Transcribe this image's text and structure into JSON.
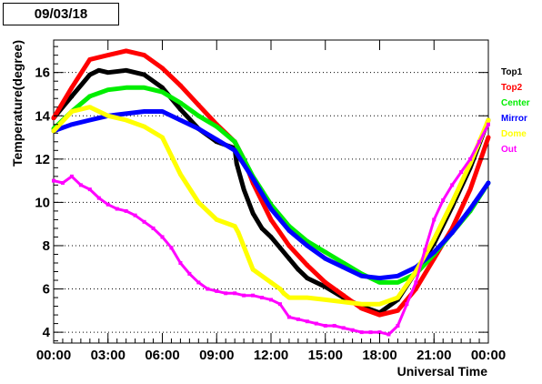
{
  "title": "09/03/18",
  "chart_data": {
    "type": "scatter",
    "xlabel": "Universal Time",
    "ylabel": "Temperature(degree)",
    "xlim": [
      0,
      24
    ],
    "ylim": [
      3.5,
      17.5
    ],
    "x_ticks": [
      {
        "value": 0,
        "label": "00:00"
      },
      {
        "value": 3,
        "label": "03:00"
      },
      {
        "value": 6,
        "label": "06:00"
      },
      {
        "value": 9,
        "label": "09:00"
      },
      {
        "value": 12,
        "label": "12:00"
      },
      {
        "value": 15,
        "label": "15:00"
      },
      {
        "value": 18,
        "label": "18:00"
      },
      {
        "value": 21,
        "label": "21:00"
      },
      {
        "value": 24,
        "label": "00:00"
      }
    ],
    "y_ticks": [
      4,
      6,
      8,
      10,
      12,
      14,
      16
    ],
    "grid": "horizontal dotted",
    "legend_position": "right",
    "series": [
      {
        "name": "Top1",
        "color": "#000000",
        "x": [
          0,
          1,
          2,
          2.5,
          3,
          4,
          5,
          6,
          7,
          8,
          9,
          10,
          10.1,
          10.5,
          11,
          11.5,
          12,
          12.5,
          13,
          13.5,
          14,
          15,
          16,
          17,
          18,
          19,
          20,
          21,
          22,
          23,
          24
        ],
        "y": [
          13.9,
          14.9,
          15.9,
          16.1,
          16.0,
          16.1,
          15.9,
          15.3,
          14.3,
          13.4,
          12.8,
          12.5,
          11.8,
          10.6,
          9.5,
          8.8,
          8.4,
          7.9,
          7.4,
          6.9,
          6.5,
          6.1,
          5.6,
          5.2,
          4.9,
          5.5,
          6.8,
          8.1,
          9.8,
          11.6,
          13.8
        ]
      },
      {
        "name": "Top2",
        "color": "#ff0000",
        "x": [
          0,
          1,
          2,
          3,
          4,
          5,
          6,
          7,
          8,
          9,
          10,
          10.5,
          11,
          12,
          13,
          14,
          15,
          16,
          17,
          18,
          19,
          20,
          21,
          22,
          23,
          24
        ],
        "y": [
          13.9,
          15.3,
          16.6,
          16.8,
          17.0,
          16.8,
          16.2,
          15.4,
          14.5,
          13.6,
          12.8,
          12.0,
          10.9,
          9.2,
          8.0,
          7.1,
          6.3,
          5.7,
          5.1,
          4.8,
          5.0,
          6.0,
          7.4,
          8.8,
          10.6,
          13.0
        ]
      },
      {
        "name": "Center",
        "color": "#00ee00",
        "x": [
          0,
          1,
          2,
          3,
          4,
          5,
          6,
          7,
          8,
          9,
          10,
          11,
          12,
          13,
          14,
          15,
          16,
          17,
          18,
          19,
          20,
          21,
          22,
          23,
          24
        ],
        "y": [
          13.4,
          14.2,
          14.9,
          15.2,
          15.3,
          15.3,
          15.1,
          14.6,
          14.0,
          13.5,
          12.8,
          11.2,
          9.9,
          8.9,
          8.2,
          7.7,
          7.2,
          6.7,
          6.3,
          6.3,
          6.7,
          7.6,
          8.6,
          9.6,
          10.9
        ]
      },
      {
        "name": "Mirror",
        "color": "#0000ff",
        "x": [
          0,
          1,
          2,
          3,
          4,
          5,
          6,
          7,
          8,
          9,
          10,
          11,
          12,
          13,
          14,
          15,
          16,
          17,
          18,
          19,
          20,
          21,
          22,
          23,
          24
        ],
        "y": [
          13.3,
          13.6,
          13.8,
          14.0,
          14.1,
          14.2,
          14.2,
          13.8,
          13.4,
          12.9,
          12.4,
          11.1,
          9.7,
          8.7,
          8.0,
          7.4,
          7.0,
          6.6,
          6.5,
          6.6,
          7.0,
          7.7,
          8.6,
          9.7,
          10.9
        ]
      },
      {
        "name": "Dome",
        "color": "#ffff00",
        "x": [
          0,
          1,
          2,
          3,
          4,
          5,
          6,
          7,
          8,
          9,
          10,
          10.2,
          11,
          12,
          12.5,
          12.7,
          13,
          14,
          15,
          16,
          17,
          18,
          19,
          20,
          21,
          22,
          23,
          24
        ],
        "y": [
          13.3,
          14.2,
          14.4,
          14.0,
          13.8,
          13.5,
          13.0,
          11.3,
          10.0,
          9.2,
          8.9,
          8.6,
          6.9,
          6.3,
          6.0,
          5.8,
          5.6,
          5.6,
          5.5,
          5.4,
          5.3,
          5.3,
          5.6,
          6.8,
          8.3,
          10.0,
          11.8,
          13.8
        ]
      },
      {
        "name": "Out",
        "color": "#ff00ff",
        "x": [
          0,
          0.5,
          1,
          1.5,
          2,
          2.5,
          3,
          3.5,
          4,
          4.5,
          5,
          5.5,
          6,
          6.5,
          7,
          7.5,
          8,
          8.5,
          9,
          9.5,
          10,
          10.5,
          11,
          11.5,
          12,
          12.5,
          13,
          13.5,
          14,
          14.5,
          15,
          15.5,
          16,
          16.5,
          17,
          17.5,
          18,
          18.5,
          19,
          19.5,
          20,
          20.5,
          21,
          21.5,
          22,
          22.5,
          23,
          23.5,
          24
        ],
        "y": [
          11.0,
          10.9,
          11.2,
          10.8,
          10.6,
          10.2,
          9.9,
          9.7,
          9.6,
          9.4,
          9.1,
          8.8,
          8.4,
          7.9,
          7.2,
          6.7,
          6.3,
          6.0,
          5.9,
          5.8,
          5.8,
          5.7,
          5.7,
          5.6,
          5.5,
          5.3,
          4.7,
          4.6,
          4.5,
          4.4,
          4.3,
          4.3,
          4.2,
          4.1,
          4.0,
          4.0,
          4.0,
          3.9,
          4.3,
          5.3,
          6.3,
          7.8,
          9.2,
          10.1,
          10.8,
          11.4,
          12.0,
          12.8,
          13.6
        ]
      }
    ]
  }
}
